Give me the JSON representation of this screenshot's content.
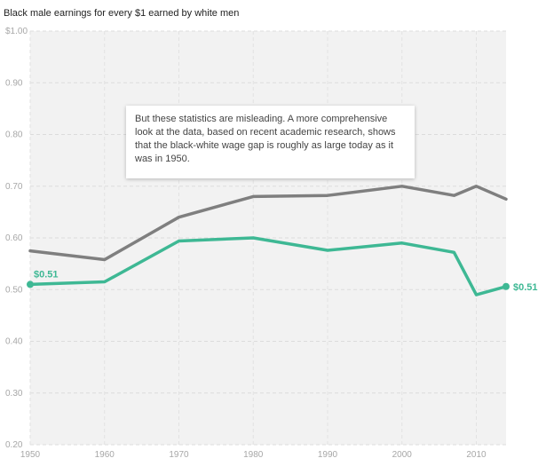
{
  "chart_data": {
    "type": "line",
    "title": "Black male earnings for every $1 earned by white men",
    "xlabel": "",
    "ylabel": "",
    "xlim": [
      1950,
      2014
    ],
    "ylim": [
      0.2,
      1.0
    ],
    "x_ticks": [
      1950,
      1960,
      1970,
      1980,
      1990,
      2000,
      2010
    ],
    "y_ticks": [
      {
        "value": 0.2,
        "label": "0.20"
      },
      {
        "value": 0.3,
        "label": "0.30"
      },
      {
        "value": 0.4,
        "label": "0.40"
      },
      {
        "value": 0.5,
        "label": "0.50"
      },
      {
        "value": 0.6,
        "label": "0.60"
      },
      {
        "value": 0.7,
        "label": "0.70"
      },
      {
        "value": 0.8,
        "label": "0.80"
      },
      {
        "value": 0.9,
        "label": "0.90"
      },
      {
        "value": 1.0,
        "label": "$1.00"
      }
    ],
    "grid": true,
    "series": [
      {
        "color": "#7f7f7f",
        "x": [
          1950,
          1960,
          1970,
          1980,
          1990,
          2000,
          2007,
          2010,
          2014
        ],
        "y": [
          0.575,
          0.558,
          0.64,
          0.68,
          0.682,
          0.7,
          0.682,
          0.7,
          0.675
        ]
      },
      {
        "color": "#3eb894",
        "x": [
          1950,
          1960,
          1970,
          1980,
          1990,
          2000,
          2007,
          2010,
          2014
        ],
        "y": [
          0.51,
          0.515,
          0.594,
          0.6,
          0.576,
          0.59,
          0.572,
          0.49,
          0.506
        ],
        "start_label": "$0.51",
        "end_label": "$0.51"
      }
    ],
    "annotations": [
      {
        "text": "But these statistics are misleading. A more comprehensive look at the data, based on recent academic research, shows that the black-white wage gap is roughly as large today as it was in 1950."
      }
    ]
  }
}
